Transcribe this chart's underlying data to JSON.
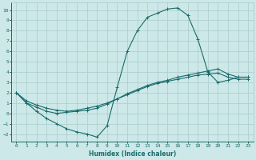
{
  "title": "",
  "xlabel": "Humidex (Indice chaleur)",
  "bg_color": "#cde8e8",
  "grid_color": "#aacccc",
  "line_color": "#1a6b6b",
  "xlim": [
    -0.5,
    23.5
  ],
  "ylim": [
    -2.7,
    10.7
  ],
  "xticks": [
    0,
    1,
    2,
    3,
    4,
    5,
    6,
    7,
    8,
    9,
    10,
    11,
    12,
    13,
    14,
    15,
    16,
    17,
    18,
    19,
    20,
    21,
    22,
    23
  ],
  "yticks": [
    -2,
    -1,
    0,
    1,
    2,
    3,
    4,
    5,
    6,
    7,
    8,
    9,
    10
  ],
  "line1_x": [
    0,
    1,
    2,
    3,
    4,
    5,
    6,
    7,
    8,
    9,
    10,
    11,
    12,
    13,
    14,
    15,
    16,
    17,
    18,
    19,
    20,
    21,
    22,
    23
  ],
  "line1_y": [
    2.0,
    1.0,
    0.2,
    -0.5,
    -1.0,
    -1.5,
    -1.8,
    -2.0,
    -2.3,
    -1.2,
    2.5,
    6.0,
    8.0,
    9.3,
    9.7,
    10.1,
    10.2,
    9.5,
    7.2,
    4.0,
    3.0,
    3.2,
    3.5,
    3.5
  ],
  "line2_x": [
    0,
    1,
    2,
    3,
    4,
    5,
    6,
    7,
    8,
    9,
    10,
    11,
    12,
    13,
    14,
    15,
    16,
    17,
    18,
    19,
    20,
    21,
    22,
    23
  ],
  "line2_y": [
    2.0,
    1.2,
    0.8,
    0.5,
    0.3,
    0.2,
    0.3,
    0.5,
    0.7,
    1.0,
    1.4,
    1.8,
    2.2,
    2.6,
    2.9,
    3.1,
    3.3,
    3.5,
    3.7,
    3.8,
    3.9,
    3.5,
    3.3,
    3.3
  ],
  "line3_x": [
    0,
    1,
    2,
    3,
    4,
    5,
    6,
    7,
    8,
    9,
    10,
    11,
    12,
    13,
    14,
    15,
    16,
    17,
    18,
    19,
    20,
    21,
    22,
    23
  ],
  "line3_y": [
    2.0,
    1.0,
    0.6,
    0.2,
    0.0,
    0.1,
    0.2,
    0.3,
    0.5,
    0.9,
    1.4,
    1.9,
    2.3,
    2.7,
    3.0,
    3.2,
    3.5,
    3.7,
    3.9,
    4.1,
    4.3,
    3.8,
    3.5,
    3.5
  ]
}
